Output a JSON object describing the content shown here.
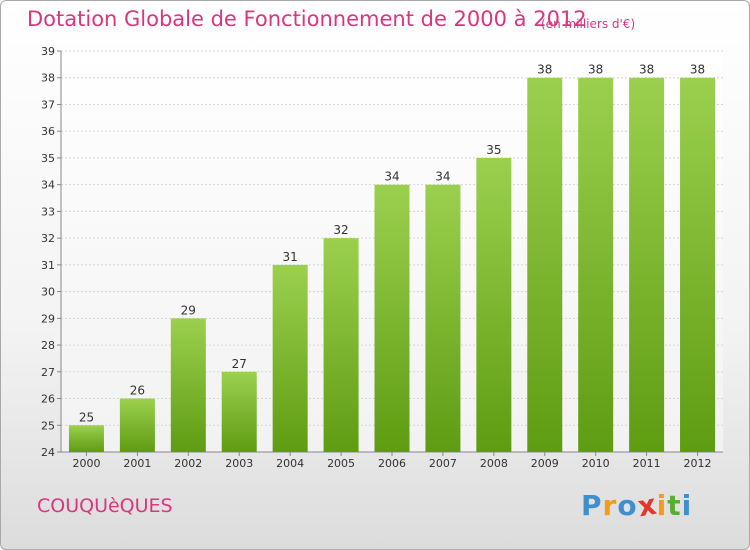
{
  "header": {
    "title": "Dotation Globale de Fonctionnement de 2000 à 2012",
    "subtitle": "(en milliers d'€)"
  },
  "footer": {
    "commune": "COUQUèQUES",
    "logo": {
      "text": "Proxiti",
      "letters": [
        {
          "char": "P",
          "color": "#3f8fd0"
        },
        {
          "char": "r",
          "color": "#f39b1a"
        },
        {
          "char": "o",
          "color": "#3f8fd0"
        },
        {
          "char": "x",
          "color": "#e0392b"
        },
        {
          "char": "i",
          "color": "#f39b1a"
        },
        {
          "char": "t",
          "color": "#5aae2e"
        },
        {
          "char": "i",
          "color": "#3f8fd0"
        }
      ]
    }
  },
  "chart_data": {
    "type": "bar",
    "categories": [
      "2000",
      "2001",
      "2002",
      "2003",
      "2004",
      "2005",
      "2006",
      "2007",
      "2008",
      "2009",
      "2010",
      "2011",
      "2012"
    ],
    "values": [
      25,
      26,
      29,
      27,
      31,
      32,
      34,
      34,
      35,
      38,
      38,
      38,
      38
    ],
    "ylim": [
      24,
      39
    ],
    "yticks": [
      24,
      25,
      26,
      27,
      28,
      29,
      30,
      31,
      32,
      33,
      34,
      35,
      36,
      37,
      38,
      39
    ],
    "grid": true,
    "data_labels": true,
    "bar_color_top": "#9bd04e",
    "bar_color_bottom": "#5e9c12",
    "title_color": "#d9367f"
  }
}
